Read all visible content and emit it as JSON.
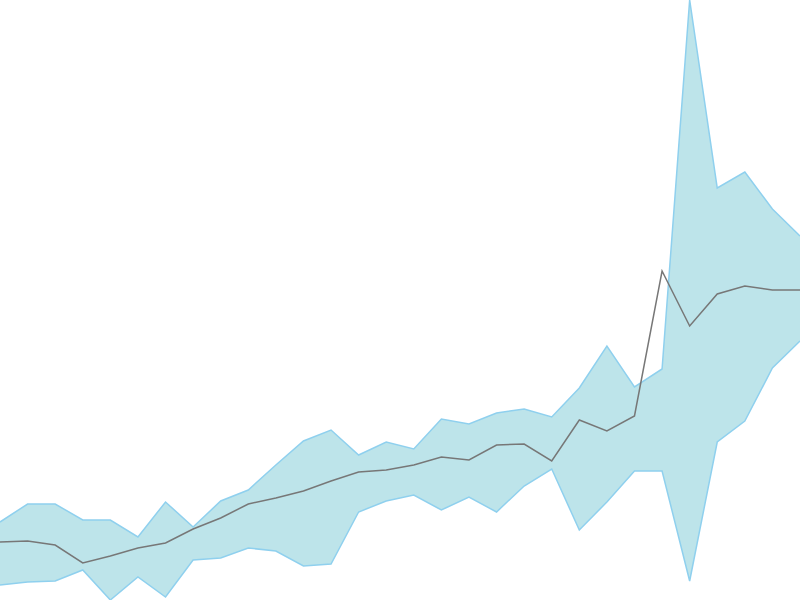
{
  "chart_data": {
    "type": "line",
    "x": [
      0,
      1,
      2,
      3,
      4,
      5,
      6,
      7,
      8,
      9,
      10,
      11,
      12,
      13,
      14,
      15,
      16,
      17,
      18,
      19,
      20,
      21,
      22,
      23,
      24,
      25,
      26,
      27,
      28,
      29
    ],
    "xlim": [
      0,
      29
    ],
    "ylim": [
      0,
      600
    ],
    "tick_labels": false,
    "grid": false,
    "series": [
      {
        "type": "band",
        "color": "#bde4ea",
        "upper": [
          78,
          96,
          96,
          80,
          80,
          63,
          98,
          73,
          99,
          110,
          135,
          159,
          170,
          145,
          158,
          151,
          181,
          176,
          187,
          191,
          183,
          212,
          254,
          213,
          231,
          600,
          412,
          428,
          391,
          364
        ],
        "lower": [
          15,
          18,
          19,
          30,
          0,
          23,
          3,
          40,
          42,
          52,
          49,
          34,
          36,
          88,
          99,
          105,
          90,
          103,
          88,
          114,
          131,
          70,
          98,
          129,
          129,
          19,
          158,
          179,
          232,
          259
        ]
      },
      {
        "type": "line",
        "color": "#777777",
        "values": [
          58,
          59,
          55,
          37,
          44,
          52,
          57,
          71,
          82,
          96,
          102,
          109,
          119,
          128,
          130,
          135,
          143,
          140,
          155,
          156,
          139,
          180,
          169,
          184,
          329,
          274,
          306,
          314,
          310,
          310
        ]
      }
    ]
  }
}
